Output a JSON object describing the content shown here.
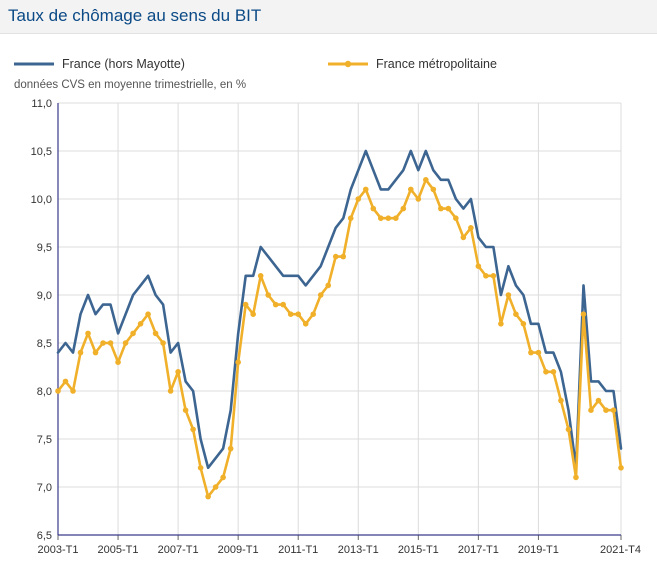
{
  "title": "Taux de chômage au sens du BIT",
  "subtitle": "données CVS en moyenne trimestrielle, en %",
  "colors": {
    "series1": "#3d6591",
    "series2": "#f0b02a",
    "title": "#0b4a86",
    "grid": "#dcdcdc"
  },
  "chart_data": {
    "type": "line",
    "ylim": [
      6.5,
      11.0
    ],
    "yticks": [
      "6,5",
      "7,0",
      "7,5",
      "8,0",
      "8,5",
      "9,0",
      "9,5",
      "10,0",
      "10,5",
      "11,0"
    ],
    "xtick_labels": [
      "2003-T1",
      "2005-T1",
      "2007-T1",
      "2009-T1",
      "2011-T1",
      "2013-T1",
      "2015-T1",
      "2017-T1",
      "2019-T1",
      "2021-T4"
    ],
    "x_start": "2003-T1",
    "x_end": "2021-T4",
    "series": [
      {
        "name": "France (hors Mayotte)",
        "values": [
          8.4,
          8.5,
          8.4,
          8.8,
          9.0,
          8.8,
          8.9,
          8.9,
          8.6,
          8.8,
          9.0,
          9.1,
          9.2,
          9.0,
          8.9,
          8.4,
          8.5,
          8.1,
          8.0,
          7.5,
          7.2,
          7.3,
          7.4,
          7.8,
          8.6,
          9.2,
          9.2,
          9.5,
          9.4,
          9.3,
          9.2,
          9.2,
          9.2,
          9.1,
          9.2,
          9.3,
          9.5,
          9.7,
          9.8,
          10.1,
          10.3,
          10.5,
          10.3,
          10.1,
          10.1,
          10.2,
          10.3,
          10.5,
          10.3,
          10.5,
          10.3,
          10.2,
          10.2,
          10.0,
          9.9,
          10.0,
          9.6,
          9.5,
          9.5,
          9.0,
          9.3,
          9.1,
          9.0,
          8.7,
          8.7,
          8.4,
          8.4,
          8.2,
          7.8,
          7.2,
          9.1,
          8.1,
          8.1,
          8.0,
          8.0,
          7.4
        ]
      },
      {
        "name": "France métropolitaine",
        "values": [
          8.0,
          8.1,
          8.0,
          8.4,
          8.6,
          8.4,
          8.5,
          8.5,
          8.3,
          8.5,
          8.6,
          8.7,
          8.8,
          8.6,
          8.5,
          8.0,
          8.2,
          7.8,
          7.6,
          7.2,
          6.9,
          7.0,
          7.1,
          7.4,
          8.3,
          8.9,
          8.8,
          9.2,
          9.0,
          8.9,
          8.9,
          8.8,
          8.8,
          8.7,
          8.8,
          9.0,
          9.1,
          9.4,
          9.4,
          9.8,
          10.0,
          10.1,
          9.9,
          9.8,
          9.8,
          9.8,
          9.9,
          10.1,
          10.0,
          10.2,
          10.1,
          9.9,
          9.9,
          9.8,
          9.6,
          9.7,
          9.3,
          9.2,
          9.2,
          8.7,
          9.0,
          8.8,
          8.7,
          8.4,
          8.4,
          8.2,
          8.2,
          7.9,
          7.6,
          7.1,
          8.8,
          7.8,
          7.9,
          7.8,
          7.8,
          7.2
        ]
      }
    ]
  }
}
